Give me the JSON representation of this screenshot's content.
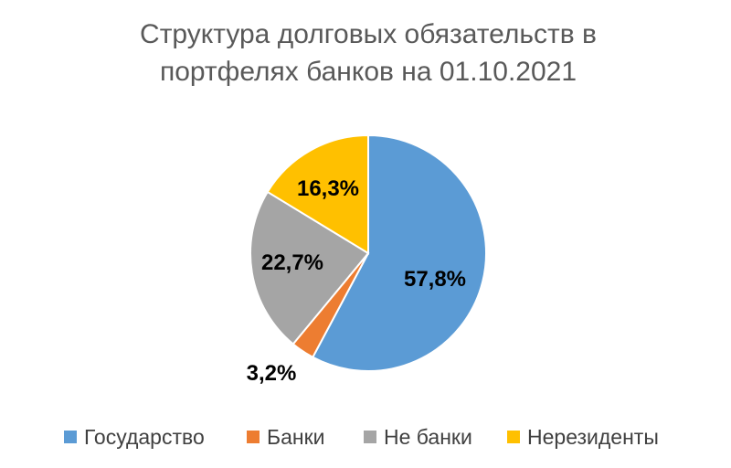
{
  "chart_data": {
    "type": "pie",
    "title": "Структура долговых обязательств в портфелях банков на 01.10.2021",
    "title_lines": [
      "Структура долговых обязательств в",
      "портфелях банков на 01.10.2021"
    ],
    "categories": [
      "Государство",
      "Банки",
      "Не банки",
      "Нерезиденты"
    ],
    "values": [
      57.8,
      3.2,
      22.7,
      16.3
    ],
    "labels": [
      "57,8%",
      "3,2%",
      "22,7%",
      "16,3%"
    ],
    "colors": [
      "#5B9BD5",
      "#ED7D31",
      "#A5A5A5",
      "#FFC000"
    ],
    "start_angle": "12 o'clock",
    "direction": "clockwise",
    "legend_position": "bottom"
  }
}
